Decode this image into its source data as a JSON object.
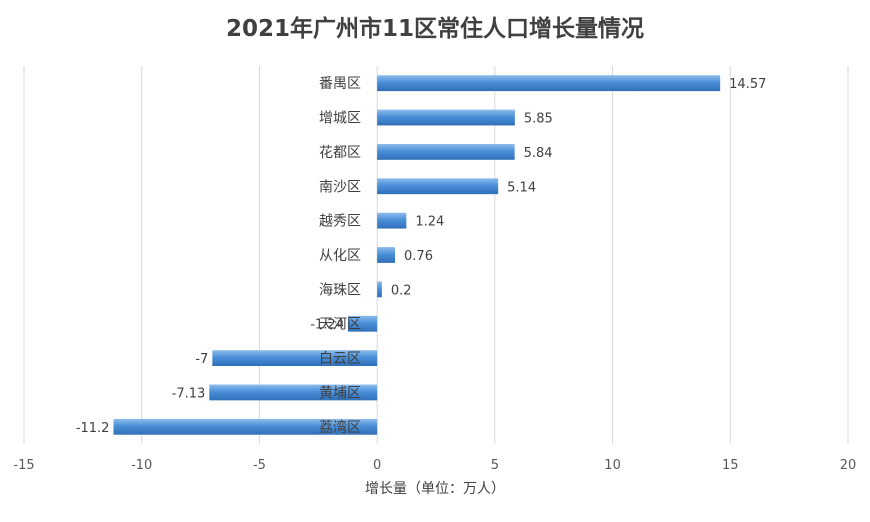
{
  "chart_data": {
    "type": "bar",
    "orientation": "horizontal",
    "title": "2021年广州市11区常住人口增长量情况",
    "xlabel": "增长量（单位：万人）",
    "ylabel": "",
    "categories": [
      "番禺区",
      "增城区",
      "花都区",
      "南沙区",
      "越秀区",
      "从化区",
      "海珠区",
      "天河区",
      "白云区",
      "黄埔区",
      "荔湾区"
    ],
    "values": [
      14.57,
      5.85,
      5.84,
      5.14,
      1.24,
      0.76,
      0.2,
      -1.24,
      -7,
      -7.13,
      -11.2
    ],
    "data_labels": [
      "14.57",
      "5.85",
      "5.84",
      "5.14",
      "1.24",
      "0.76",
      "0.2",
      "-1.24",
      "-7",
      "-7.13",
      "-11.2"
    ],
    "xlim": [
      -15,
      20
    ],
    "xticks": [
      -15,
      -10,
      -5,
      0,
      5,
      10,
      15,
      20
    ],
    "xtick_labels": [
      "-15",
      "-10",
      "-5",
      "0",
      "5",
      "10",
      "15",
      "20"
    ],
    "grid": true,
    "legend": "none",
    "bar_color": "#4a8fd8",
    "bar_color_light": "#8ebcec",
    "bar_color_dark": "#2f6fb8"
  }
}
